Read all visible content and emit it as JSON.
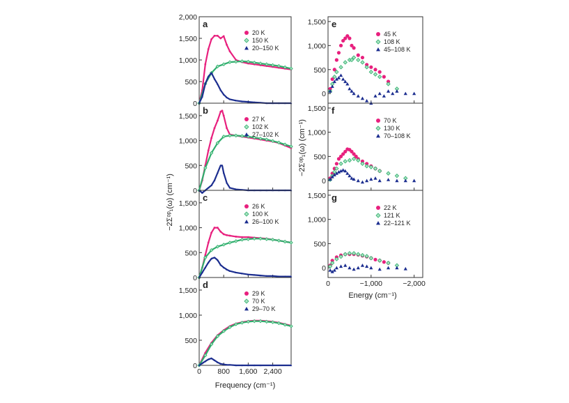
{
  "colors": {
    "magenta": "#e8207e",
    "green": "#2fae6d",
    "green_fill": "#a8e3c0",
    "navy": "#1b2d8f",
    "frame": "#333333"
  },
  "axes": {
    "left_xlabel": "Frequency (cm⁻¹)",
    "left_ylabel": "−2Σᵒᵖ₁(ω) (cm⁻¹)",
    "right_xlabel": "Energy (cm⁻¹)",
    "right_ylabel": "−2Σᵒᵖ₁(ω) (cm⁻¹)",
    "left_xticks": [
      "0",
      "800",
      "1,600",
      "2,400"
    ],
    "right_xticks": [
      "0",
      "−1,000",
      "−2,000"
    ]
  },
  "chart_data": [
    {
      "panel": "a",
      "type": "scatter",
      "xlim": [
        0,
        3000
      ],
      "ylim": [
        0,
        2000
      ],
      "yticks": [
        "0",
        "500",
        "1,000",
        "1,500",
        "2,000"
      ],
      "legend": [
        "20 K",
        "150 K",
        "20–150 K"
      ],
      "series": [
        {
          "name": "20 K",
          "x": [
            0,
            100,
            200,
            300,
            400,
            500,
            600,
            700,
            800,
            900,
            1000,
            1200,
            1400,
            1600,
            1800,
            2000,
            2200,
            2400,
            2600,
            2800,
            3000
          ],
          "y": [
            0,
            300,
            900,
            1250,
            1480,
            1560,
            1560,
            1500,
            1550,
            1350,
            1200,
            1000,
            950,
            920,
            900,
            880,
            860,
            840,
            820,
            800,
            780
          ]
        },
        {
          "name": "150 K",
          "x": [
            0,
            200,
            400,
            600,
            800,
            1000,
            1200,
            1400,
            1600,
            1800,
            2000,
            2200,
            2400,
            2600,
            2800,
            3000
          ],
          "y": [
            0,
            450,
            700,
            850,
            900,
            950,
            960,
            970,
            960,
            940,
            920,
            900,
            880,
            860,
            830,
            800
          ]
        },
        {
          "name": "20–150 K",
          "x": [
            0,
            100,
            200,
            300,
            400,
            500,
            600,
            700,
            800,
            900,
            1000,
            1200,
            1400,
            1600,
            1800,
            2000,
            2200,
            2400,
            2600,
            2800,
            3000
          ],
          "y": [
            0,
            150,
            450,
            620,
            700,
            560,
            440,
            300,
            200,
            130,
            90,
            60,
            40,
            30,
            20,
            10,
            0,
            0,
            0,
            0,
            0
          ]
        }
      ]
    },
    {
      "panel": "b",
      "type": "scatter",
      "xlim": [
        0,
        3000
      ],
      "ylim": [
        0,
        1750
      ],
      "yticks": [
        "0",
        "500",
        "1,000",
        "1,500"
      ],
      "legend": [
        "27 K",
        "102 K",
        "27–102 K"
      ],
      "series": [
        {
          "name": "27 K",
          "x": [
            0,
            100,
            200,
            300,
            400,
            500,
            600,
            700,
            750,
            800,
            900,
            1000,
            1200,
            1400,
            1600,
            1800,
            2000,
            2200,
            2400,
            2600,
            2800,
            3000
          ],
          "y": [
            0,
            200,
            500,
            800,
            1050,
            1250,
            1400,
            1580,
            1600,
            1500,
            1250,
            1120,
            1100,
            1080,
            1060,
            1040,
            1020,
            1000,
            980,
            950,
            900,
            850
          ]
        },
        {
          "name": "102 K",
          "x": [
            0,
            200,
            400,
            600,
            800,
            1000,
            1200,
            1400,
            1600,
            1800,
            2000,
            2200,
            2400,
            2600,
            2800,
            3000
          ],
          "y": [
            0,
            450,
            750,
            950,
            1080,
            1100,
            1100,
            1090,
            1080,
            1060,
            1040,
            1020,
            990,
            960,
            920,
            880
          ]
        },
        {
          "name": "27–102 K",
          "x": [
            0,
            100,
            200,
            300,
            400,
            500,
            600,
            700,
            750,
            800,
            900,
            1000,
            1200,
            1400,
            1600,
            1800,
            2000,
            2200,
            2400,
            2600,
            2800,
            3000
          ],
          "y": [
            0,
            -50,
            0,
            50,
            100,
            200,
            350,
            500,
            500,
            350,
            150,
            50,
            20,
            10,
            0,
            0,
            0,
            0,
            0,
            0,
            0,
            0
          ]
        }
      ]
    },
    {
      "panel": "c",
      "type": "scatter",
      "xlim": [
        0,
        3000
      ],
      "ylim": [
        0,
        1750
      ],
      "yticks": [
        "0",
        "500",
        "1,000",
        "1,500"
      ],
      "legend": [
        "26 K",
        "100 K",
        "26–100 K"
      ],
      "series": [
        {
          "name": "26 K",
          "x": [
            0,
            100,
            200,
            300,
            400,
            500,
            600,
            700,
            800,
            900,
            1000,
            1200,
            1400,
            1600,
            1800,
            2000,
            2200,
            2400,
            2600,
            2800,
            3000
          ],
          "y": [
            0,
            200,
            450,
            700,
            900,
            1000,
            1000,
            920,
            870,
            850,
            840,
            820,
            810,
            810,
            800,
            790,
            780,
            760,
            740,
            720,
            700
          ]
        },
        {
          "name": "100 K",
          "x": [
            0,
            200,
            400,
            600,
            800,
            1000,
            1200,
            1400,
            1600,
            1800,
            2000,
            2200,
            2400,
            2600,
            2800,
            3000
          ],
          "y": [
            0,
            400,
            550,
            620,
            660,
            700,
            730,
            760,
            770,
            780,
            780,
            770,
            760,
            740,
            720,
            700
          ]
        },
        {
          "name": "26–100 K",
          "x": [
            0,
            100,
            200,
            300,
            400,
            500,
            600,
            700,
            800,
            900,
            1000,
            1200,
            1400,
            1600,
            1800,
            2000,
            2200,
            2400,
            2600,
            2800,
            3000
          ],
          "y": [
            0,
            100,
            200,
            300,
            380,
            400,
            350,
            250,
            200,
            160,
            130,
            100,
            80,
            60,
            50,
            40,
            30,
            30,
            20,
            20,
            20
          ]
        }
      ]
    },
    {
      "panel": "d",
      "type": "scatter",
      "xlim": [
        0,
        3000
      ],
      "ylim": [
        0,
        1750
      ],
      "yticks": [
        "0",
        "500",
        "1,000",
        "1,500"
      ],
      "legend": [
        "29 K",
        "70 K",
        "29–70 K"
      ],
      "series": [
        {
          "name": "29 K",
          "x": [
            0,
            200,
            400,
            600,
            800,
            1000,
            1200,
            1400,
            1600,
            1800,
            2000,
            2200,
            2400,
            2600,
            2800,
            3000
          ],
          "y": [
            0,
            250,
            450,
            600,
            700,
            780,
            830,
            860,
            880,
            890,
            890,
            880,
            870,
            850,
            820,
            790
          ]
        },
        {
          "name": "70 K",
          "x": [
            0,
            200,
            400,
            600,
            800,
            1000,
            1200,
            1400,
            1600,
            1800,
            2000,
            2200,
            2400,
            2600,
            2800,
            3000
          ],
          "y": [
            0,
            200,
            420,
            580,
            680,
            760,
            820,
            850,
            870,
            880,
            880,
            870,
            860,
            840,
            810,
            780
          ]
        },
        {
          "name": "29–70 K",
          "x": [
            0,
            100,
            200,
            300,
            400,
            500,
            600,
            700,
            800,
            900,
            1000,
            1200,
            1400,
            1600,
            1800,
            2000,
            2400,
            3000
          ],
          "y": [
            0,
            40,
            80,
            120,
            140,
            100,
            60,
            30,
            20,
            10,
            10,
            0,
            0,
            0,
            0,
            0,
            0,
            0
          ]
        }
      ]
    },
    {
      "panel": "e",
      "type": "scatter",
      "xlim": [
        0,
        -2200
      ],
      "ylim": [
        -200,
        1600
      ],
      "yticks": [
        "0",
        "500",
        "1,000",
        "1,500"
      ],
      "legend": [
        "45 K",
        "108 K",
        "45–108 K"
      ],
      "series": [
        {
          "name": "45 K",
          "x": [
            -50,
            -100,
            -150,
            -200,
            -250,
            -300,
            -350,
            -400,
            -450,
            -500,
            -550,
            -600,
            -700,
            -800,
            -900,
            -1000,
            -1100,
            -1200,
            -1300,
            -1400
          ],
          "y": [
            100,
            300,
            500,
            700,
            850,
            1000,
            1100,
            1150,
            1200,
            1150,
            1000,
            950,
            800,
            750,
            600,
            550,
            500,
            450,
            350,
            250
          ]
        },
        {
          "name": "108 K",
          "x": [
            -50,
            -100,
            -150,
            -200,
            -300,
            -400,
            -500,
            -550,
            -600,
            -700,
            -800,
            -900,
            -1000,
            -1100,
            -1200,
            -1400,
            -1600
          ],
          "y": [
            50,
            200,
            350,
            450,
            550,
            650,
            700,
            700,
            750,
            700,
            650,
            550,
            450,
            400,
            350,
            200,
            100
          ]
        },
        {
          "name": "45–108 K",
          "x": [
            -50,
            -100,
            -150,
            -200,
            -250,
            -300,
            -350,
            -400,
            -450,
            -500,
            -550,
            -600,
            -700,
            -800,
            -900,
            -1000,
            -1100,
            -1200,
            -1300,
            -1400,
            -1500,
            -1600,
            -1800,
            -2000
          ],
          "y": [
            50,
            150,
            250,
            300,
            330,
            380,
            300,
            250,
            200,
            100,
            50,
            0,
            -50,
            -100,
            -150,
            -200,
            -50,
            0,
            -50,
            50,
            0,
            50,
            0,
            0
          ]
        }
      ]
    },
    {
      "panel": "f",
      "type": "scatter",
      "xlim": [
        0,
        -2200
      ],
      "ylim": [
        -200,
        1600
      ],
      "yticks": [
        "0",
        "500",
        "1,000",
        "1,500"
      ],
      "legend": [
        "70 K",
        "130 K",
        "70–108 K"
      ],
      "series": [
        {
          "name": "70 K",
          "x": [
            -50,
            -100,
            -150,
            -200,
            -250,
            -300,
            -350,
            -400,
            -450,
            -500,
            -550,
            -600,
            -650,
            -700,
            -800,
            -900,
            -1000,
            -1100,
            -1200
          ],
          "y": [
            50,
            150,
            250,
            350,
            450,
            500,
            550,
            600,
            650,
            640,
            600,
            550,
            500,
            450,
            400,
            350,
            300,
            250,
            200
          ]
        },
        {
          "name": "130 K",
          "x": [
            -50,
            -100,
            -150,
            -200,
            -300,
            -400,
            -500,
            -600,
            -700,
            -800,
            -900,
            -1000,
            -1100,
            -1200,
            -1400,
            -1600,
            -1800
          ],
          "y": [
            20,
            100,
            180,
            250,
            350,
            400,
            420,
            450,
            420,
            350,
            300,
            280,
            250,
            200,
            150,
            100,
            50
          ]
        },
        {
          "name": "70–108 K",
          "x": [
            -50,
            -100,
            -150,
            -200,
            -250,
            -300,
            -350,
            -400,
            -450,
            -500,
            -550,
            -600,
            -700,
            -800,
            -900,
            -1000,
            -1100,
            -1200,
            -1400,
            -1600,
            -1800,
            -2000
          ],
          "y": [
            30,
            80,
            120,
            150,
            180,
            200,
            220,
            200,
            150,
            100,
            50,
            30,
            0,
            -30,
            0,
            30,
            50,
            0,
            20,
            0,
            0,
            0
          ]
        }
      ]
    },
    {
      "panel": "g",
      "type": "scatter",
      "xlim": [
        0,
        -2200
      ],
      "ylim": [
        -200,
        1600
      ],
      "yticks": [
        "0",
        "500",
        "1,000",
        "1,500"
      ],
      "legend": [
        "22 K",
        "121 K",
        "22–121 K"
      ],
      "series": [
        {
          "name": "22 K",
          "x": [
            -50,
            -100,
            -200,
            -300,
            -400,
            -500,
            -600,
            -700,
            -800,
            -900,
            -1000,
            -1100,
            -1200,
            -1300,
            -1400
          ],
          "y": [
            50,
            150,
            220,
            260,
            280,
            280,
            280,
            270,
            250,
            230,
            200,
            170,
            150,
            120,
            100
          ]
        },
        {
          "name": "121 K",
          "x": [
            -50,
            -100,
            -200,
            -300,
            -400,
            -500,
            -600,
            -700,
            -800,
            -900,
            -1000,
            -1200,
            -1400,
            -1600
          ],
          "y": [
            30,
            100,
            180,
            230,
            280,
            300,
            300,
            280,
            260,
            240,
            200,
            150,
            100,
            50
          ]
        },
        {
          "name": "22–121 K",
          "x": [
            -50,
            -100,
            -150,
            -200,
            -300,
            -400,
            -500,
            -600,
            -700,
            -800,
            -900,
            -1000,
            -1200,
            -1400,
            -1600,
            -1800
          ],
          "y": [
            -50,
            -80,
            -50,
            0,
            30,
            50,
            0,
            -30,
            0,
            50,
            30,
            0,
            -30,
            0,
            0,
            -20
          ]
        }
      ]
    }
  ]
}
